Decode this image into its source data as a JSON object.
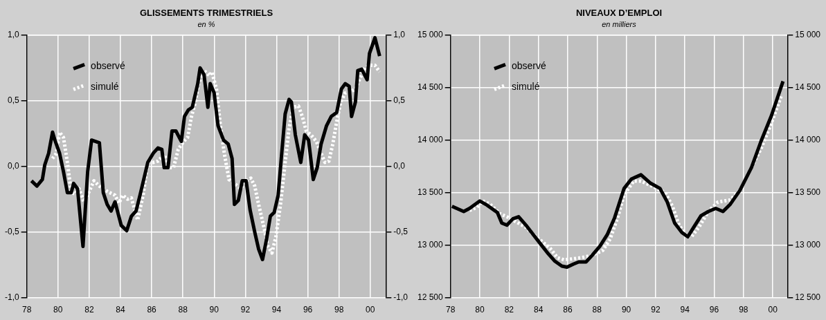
{
  "chart_data": [
    {
      "type": "line",
      "title": "GLISSEMENTS TRIMESTRIELS",
      "subtitle": "en %",
      "legend": "top left",
      "grid": true,
      "xlim": [
        1978,
        2001
      ],
      "xticks": [
        {
          "value": 1978,
          "label": "78"
        },
        {
          "value": 1980,
          "label": "80"
        },
        {
          "value": 1982,
          "label": "82"
        },
        {
          "value": 1984,
          "label": "84"
        },
        {
          "value": 1986,
          "label": "86"
        },
        {
          "value": 1988,
          "label": "88"
        },
        {
          "value": 1990,
          "label": "90"
        },
        {
          "value": 1992,
          "label": "92"
        },
        {
          "value": 1994,
          "label": "94"
        },
        {
          "value": 1996,
          "label": "96"
        },
        {
          "value": 1998,
          "label": "98"
        },
        {
          "value": 2000,
          "label": "00"
        }
      ],
      "ylim": [
        -1,
        1
      ],
      "yticks": [
        {
          "value": -1,
          "label": "-1,0"
        },
        {
          "value": -0.5,
          "label": "-0,5"
        },
        {
          "value": 0,
          "label": "0,0"
        },
        {
          "value": 0.5,
          "label": "0,5"
        },
        {
          "value": 1,
          "label": "1,0"
        }
      ],
      "y2lim": [
        -1,
        1
      ],
      "y2ticks": [
        {
          "value": -1,
          "label": "-1,0"
        },
        {
          "value": -0.5,
          "label": "-0,5"
        },
        {
          "value": 0,
          "label": "0,0"
        },
        {
          "value": 0.5,
          "label": "0,5"
        },
        {
          "value": 1,
          "label": "1,0"
        }
      ],
      "series": [
        {
          "name": "observé",
          "color": "#000000",
          "line_style": "solid",
          "x": [
            1978.3,
            1978.65,
            1979.0,
            1979.15,
            1979.4,
            1979.65,
            1979.8,
            1980.1,
            1980.35,
            1980.6,
            1980.85,
            1981.0,
            1981.25,
            1981.6,
            1981.9,
            1982.15,
            1982.65,
            1982.9,
            1983.15,
            1983.4,
            1983.65,
            1984.05,
            1984.4,
            1984.7,
            1985.0,
            1985.25,
            1985.75,
            1986.1,
            1986.4,
            1986.65,
            1986.8,
            1987.05,
            1987.3,
            1987.55,
            1987.9,
            1988.1,
            1988.35,
            1988.6,
            1988.95,
            1989.1,
            1989.35,
            1989.6,
            1989.75,
            1990.0,
            1990.25,
            1990.6,
            1990.9,
            1991.15,
            1991.3,
            1991.55,
            1991.8,
            1992.05,
            1992.3,
            1992.6,
            1992.85,
            1993.1,
            1993.35,
            1993.6,
            1993.85,
            1994.1,
            1994.3,
            1994.55,
            1994.8,
            1994.95,
            1995.2,
            1995.55,
            1995.8,
            1996.05,
            1996.35,
            1996.6,
            1996.85,
            1997.2,
            1997.5,
            1997.85,
            1998.15,
            1998.4,
            1998.65,
            1998.8,
            1999.05,
            1999.2,
            1999.45,
            1999.8,
            1999.95,
            2000.3,
            2000.6
          ],
          "values": [
            -0.11,
            -0.15,
            -0.1,
            0.01,
            0.1,
            0.26,
            0.2,
            0.1,
            -0.04,
            -0.2,
            -0.2,
            -0.13,
            -0.17,
            -0.61,
            -0.04,
            0.2,
            0.18,
            -0.2,
            -0.29,
            -0.34,
            -0.27,
            -0.45,
            -0.49,
            -0.38,
            -0.34,
            -0.22,
            0.03,
            0.1,
            0.14,
            0.13,
            -0.01,
            -0.01,
            0.27,
            0.27,
            0.19,
            0.38,
            0.43,
            0.45,
            0.63,
            0.75,
            0.7,
            0.45,
            0.63,
            0.56,
            0.31,
            0.2,
            0.17,
            0.06,
            -0.29,
            -0.26,
            -0.11,
            -0.11,
            -0.33,
            -0.5,
            -0.63,
            -0.71,
            -0.56,
            -0.38,
            -0.35,
            -0.22,
            0.06,
            0.4,
            0.51,
            0.49,
            0.24,
            0.03,
            0.24,
            0.2,
            -0.1,
            -0.01,
            0.17,
            0.31,
            0.38,
            0.41,
            0.59,
            0.63,
            0.61,
            0.38,
            0.49,
            0.73,
            0.74,
            0.66,
            0.86,
            0.98,
            0.84
          ]
        },
        {
          "name": "simulé",
          "color": "#ffffff",
          "line_style": "dotted",
          "x": [
            1979.65,
            1979.9,
            1980.1,
            1980.35,
            1980.6,
            1980.85,
            1981.1,
            1981.35,
            1981.65,
            1982.0,
            1982.3,
            1982.65,
            1983.15,
            1983.65,
            1983.9,
            1984.15,
            1984.45,
            1984.7,
            1985.1,
            1985.45,
            1985.75,
            1986.1,
            1986.4,
            1986.8,
            1987.15,
            1987.4,
            1987.7,
            1988.05,
            1988.3,
            1988.55,
            1988.8,
            1989.0,
            1989.35,
            1989.7,
            1989.85,
            1990.15,
            1990.4,
            1990.65,
            1990.95,
            1991.3,
            1991.7,
            1992.05,
            1992.35,
            1992.6,
            1992.85,
            1993.2,
            1993.45,
            1993.7,
            1993.95,
            1994.25,
            1994.55,
            1994.8,
            1995.05,
            1995.4,
            1995.65,
            1995.9,
            1996.2,
            1996.55,
            1996.85,
            1997.1,
            1997.35,
            1997.6,
            1997.85,
            1998.1,
            1998.4,
            1998.75,
            1999.05,
            1999.3,
            1999.65,
            1999.95,
            2000.3,
            2000.6
          ],
          "values": [
            0.06,
            0.1,
            0.26,
            0.22,
            0.03,
            -0.2,
            -0.21,
            -0.17,
            -0.27,
            -0.19,
            -0.11,
            -0.15,
            -0.19,
            -0.22,
            -0.28,
            -0.22,
            -0.25,
            -0.24,
            -0.41,
            -0.22,
            0.03,
            0.03,
            0.04,
            0.09,
            -0.01,
            -0.01,
            0.13,
            0.19,
            0.22,
            0.38,
            0.49,
            0.63,
            0.73,
            0.69,
            0.72,
            0.59,
            0.31,
            0.1,
            -0.1,
            -0.13,
            -0.17,
            -0.11,
            -0.09,
            -0.15,
            -0.29,
            -0.47,
            -0.61,
            -0.66,
            -0.54,
            -0.29,
            0.03,
            0.29,
            0.45,
            0.46,
            0.38,
            0.27,
            0.24,
            0.19,
            0.1,
            0.03,
            0.04,
            0.17,
            0.34,
            0.49,
            0.56,
            0.57,
            0.59,
            0.66,
            0.75,
            0.77,
            0.77,
            0.72
          ]
        }
      ]
    },
    {
      "type": "line",
      "title": "NIVEAUX D’EMPLOI",
      "subtitle": "en milliers",
      "legend": "top left",
      "grid": true,
      "xlim": [
        1978,
        2001
      ],
      "xticks": [
        {
          "value": 1978,
          "label": "78"
        },
        {
          "value": 1980,
          "label": "80"
        },
        {
          "value": 1982,
          "label": "82"
        },
        {
          "value": 1984,
          "label": "84"
        },
        {
          "value": 1986,
          "label": "86"
        },
        {
          "value": 1988,
          "label": "88"
        },
        {
          "value": 1990,
          "label": "90"
        },
        {
          "value": 1992,
          "label": "92"
        },
        {
          "value": 1994,
          "label": "94"
        },
        {
          "value": 1996,
          "label": "96"
        },
        {
          "value": 1998,
          "label": "98"
        },
        {
          "value": 2000,
          "label": "00"
        }
      ],
      "ylim": [
        12500,
        15000
      ],
      "yticks": [
        {
          "value": 12500,
          "label": "12 500"
        },
        {
          "value": 13000,
          "label": "13 000"
        },
        {
          "value": 13500,
          "label": "13 500"
        },
        {
          "value": 14000,
          "label": "14 000"
        },
        {
          "value": 14500,
          "label": "14 500"
        },
        {
          "value": 15000,
          "label": "15 000"
        }
      ],
      "y2lim": [
        12500,
        15000
      ],
      "y2ticks": [
        {
          "value": 12500,
          "label": "12 500"
        },
        {
          "value": 13000,
          "label": "13 000"
        },
        {
          "value": 13500,
          "label": "13 500"
        },
        {
          "value": 14000,
          "label": "14 000"
        },
        {
          "value": 14500,
          "label": "14 500"
        },
        {
          "value": 15000,
          "label": "15 000"
        }
      ],
      "series": [
        {
          "name": "observé",
          "color": "#000000",
          "line_style": "solid",
          "x": [
            1978.1,
            1978.9,
            1979.3,
            1980.0,
            1980.5,
            1981.2,
            1981.5,
            1981.85,
            1982.25,
            1982.65,
            1983.15,
            1983.65,
            1984.15,
            1984.6,
            1985.1,
            1985.6,
            1985.95,
            1986.4,
            1986.75,
            1987.25,
            1987.65,
            1988.2,
            1988.7,
            1989.2,
            1989.85,
            1990.35,
            1991.0,
            1991.65,
            1992.3,
            1992.8,
            1993.3,
            1993.8,
            1994.2,
            1994.6,
            1995.1,
            1995.6,
            1996.1,
            1996.6,
            1997.1,
            1997.75,
            1998.55,
            1999.2,
            1999.9,
            2000.7
          ],
          "values": [
            13370,
            13320,
            13350,
            13420,
            13380,
            13310,
            13210,
            13190,
            13250,
            13270,
            13190,
            13100,
            13010,
            12930,
            12850,
            12800,
            12790,
            12820,
            12840,
            12840,
            12900,
            12990,
            13100,
            13260,
            13540,
            13630,
            13670,
            13590,
            13540,
            13410,
            13210,
            13120,
            13080,
            13170,
            13280,
            13320,
            13350,
            13320,
            13390,
            13520,
            13740,
            13990,
            14230,
            14560
          ]
        },
        {
          "name": "simulé",
          "color": "#ffffff",
          "line_style": "dotted",
          "x": [
            1979.3,
            1979.8,
            1980.2,
            1980.7,
            1981.35,
            1981.85,
            1982.5,
            1983.15,
            1983.65,
            1984.2,
            1984.8,
            1985.3,
            1985.75,
            1986.4,
            1986.9,
            1987.6,
            1988.4,
            1988.9,
            1989.4,
            1989.85,
            1990.5,
            1991.0,
            1991.8,
            1992.65,
            1993.15,
            1993.6,
            1994.1,
            1994.45,
            1994.95,
            1995.6,
            1996.25,
            1997.1,
            1997.75,
            1998.4,
            1999.2,
            1999.9,
            2000.6
          ],
          "values": [
            13330,
            13360,
            13420,
            13390,
            13300,
            13270,
            13220,
            13170,
            13100,
            13040,
            12970,
            12880,
            12860,
            12870,
            12880,
            12900,
            12950,
            13060,
            13260,
            13480,
            13610,
            13610,
            13560,
            13500,
            13370,
            13190,
            13090,
            13080,
            13170,
            13320,
            13410,
            13430,
            13520,
            13700,
            13920,
            14160,
            14430
          ]
        }
      ]
    }
  ]
}
